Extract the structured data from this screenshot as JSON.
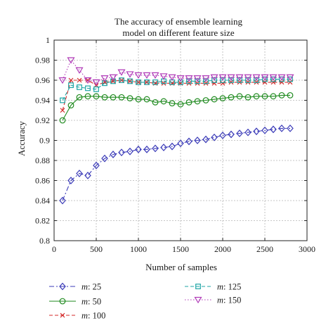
{
  "chart_data": {
    "type": "line",
    "title": [
      "The accuracy of ensemble learning",
      "model on different feature size"
    ],
    "xlabel": "Number of samples",
    "ylabel": "Accuracy",
    "xlim": [
      0,
      3000
    ],
    "ylim": [
      0.8,
      1.0
    ],
    "xticks": [
      0,
      500,
      1000,
      1500,
      2000,
      2500,
      3000
    ],
    "yticks": [
      0.8,
      0.82,
      0.84,
      0.86,
      0.88,
      0.9,
      0.92,
      0.94,
      0.96,
      0.98,
      1
    ],
    "xtick_labels": [
      "0",
      "500",
      "1000",
      "1500",
      "2000",
      "2500",
      "3000"
    ],
    "ytick_labels": [
      "0.8",
      "0.82",
      "0.84",
      "0.86",
      "0.88",
      "0.9",
      "0.92",
      "0.94",
      "0.96",
      "0.98",
      "1"
    ],
    "grid": true,
    "legend_position": "bottom, outside plot, two columns",
    "x": [
      100,
      200,
      300,
      400,
      500,
      600,
      700,
      800,
      900,
      1000,
      1100,
      1200,
      1300,
      1400,
      1500,
      1600,
      1700,
      1800,
      1900,
      2000,
      2100,
      2200,
      2300,
      2400,
      2500,
      2600,
      2700,
      2800
    ],
    "series": [
      {
        "name_prefix": "m",
        "name_value": ": 25",
        "color": "#3b3bb8",
        "dash": "7 3 2 3",
        "marker": "diamond",
        "values": [
          0.84,
          0.86,
          0.867,
          0.865,
          0.875,
          0.882,
          0.886,
          0.888,
          0.889,
          0.891,
          0.891,
          0.892,
          0.893,
          0.894,
          0.897,
          0.899,
          0.9,
          0.901,
          0.903,
          0.905,
          0.906,
          0.907,
          0.908,
          0.909,
          0.91,
          0.911,
          0.912,
          0.912
        ]
      },
      {
        "name_prefix": "m",
        "name_value": ": 50",
        "color": "#1e8a1e",
        "dash": "",
        "marker": "circle",
        "values": [
          0.92,
          0.935,
          0.943,
          0.944,
          0.944,
          0.943,
          0.943,
          0.943,
          0.942,
          0.941,
          0.941,
          0.938,
          0.939,
          0.937,
          0.936,
          0.938,
          0.939,
          0.94,
          0.941,
          0.942,
          0.943,
          0.944,
          0.943,
          0.944,
          0.944,
          0.944,
          0.945,
          0.945
        ]
      },
      {
        "name_prefix": "m",
        "name_value": ": 100",
        "color": "#d42a2a",
        "dash": "5 3",
        "marker": "x",
        "values": [
          0.93,
          0.96,
          0.96,
          0.96,
          0.955,
          0.958,
          0.959,
          0.96,
          0.959,
          0.958,
          0.958,
          0.957,
          0.957,
          0.957,
          0.957,
          0.957,
          0.957,
          0.957,
          0.957,
          0.957,
          0.958,
          0.958,
          0.958,
          0.958,
          0.958,
          0.958,
          0.958,
          0.958
        ]
      },
      {
        "name_prefix": "m",
        "name_value": ": 125",
        "color": "#1fa6a6",
        "dash": "5 3",
        "marker": "square",
        "values": [
          0.94,
          0.955,
          0.953,
          0.952,
          0.951,
          0.957,
          0.959,
          0.96,
          0.959,
          0.958,
          0.958,
          0.958,
          0.959,
          0.958,
          0.958,
          0.959,
          0.959,
          0.959,
          0.96,
          0.96,
          0.96,
          0.96,
          0.96,
          0.96,
          0.961,
          0.961,
          0.961,
          0.961
        ]
      },
      {
        "name_prefix": "m",
        "name_value": ": 150",
        "color": "#b03bb8",
        "dash": "1.5 2.5",
        "marker": "triangle-down",
        "values": [
          0.96,
          0.98,
          0.97,
          0.96,
          0.958,
          0.962,
          0.963,
          0.968,
          0.966,
          0.965,
          0.965,
          0.965,
          0.964,
          0.963,
          0.962,
          0.962,
          0.962,
          0.962,
          0.963,
          0.963,
          0.963,
          0.963,
          0.963,
          0.963,
          0.963,
          0.963,
          0.963,
          0.963
        ]
      }
    ]
  }
}
